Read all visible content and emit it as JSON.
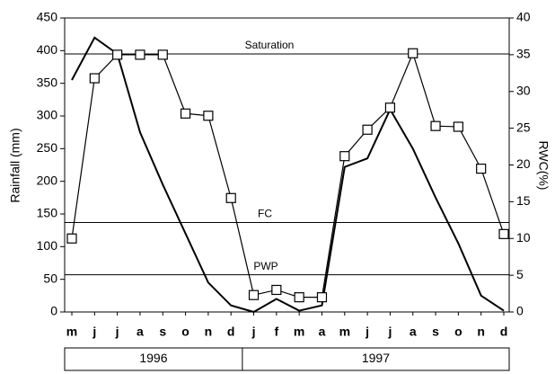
{
  "chart_data": {
    "type": "line",
    "categories": [
      "m",
      "j",
      "j",
      "a",
      "s",
      "o",
      "n",
      "d",
      "j",
      "f",
      "m",
      "a",
      "m",
      "j",
      "j",
      "a",
      "s",
      "o",
      "n",
      "d"
    ],
    "year_groups": [
      "1996",
      "1997"
    ],
    "ylabel": "Rainfall (mm)",
    "y2label": "RWC(%)",
    "ylim": [
      0,
      450
    ],
    "yticks": [
      0,
      50,
      100,
      150,
      200,
      250,
      300,
      350,
      400,
      450
    ],
    "y2lim": [
      0,
      40
    ],
    "y2ticks": [
      0,
      5,
      10,
      15,
      20,
      25,
      30,
      35,
      40
    ],
    "series": [
      {
        "name": "Rainfall",
        "color": "#000000",
        "marker": "none",
        "values": [
          355,
          420,
          395,
          275,
          195,
          120,
          45,
          10,
          0,
          20,
          2,
          10,
          222,
          235,
          310,
          250,
          175,
          105,
          25,
          2
        ]
      },
      {
        "name": "RWC",
        "color": "#000000",
        "marker": "square",
        "axis": "y2",
        "values": [
          10,
          31.8,
          35,
          35,
          35,
          27,
          26.7,
          15.5,
          2.3,
          3,
          2,
          2,
          21.2,
          24.8,
          27.8,
          35.2,
          25.3,
          25.2,
          19.5,
          10.6
        ]
      }
    ],
    "reference_lines": [
      {
        "label": "Saturation",
        "value": 395
      },
      {
        "label": "FC",
        "value": 137
      },
      {
        "label": "PWP",
        "value": 57
      }
    ]
  }
}
